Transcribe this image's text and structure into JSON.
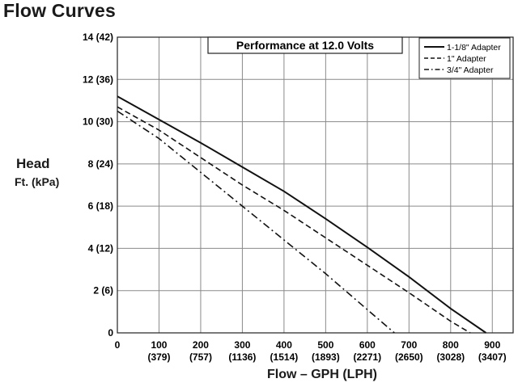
{
  "page_title": "Flow Curves",
  "chart_data": {
    "type": "line",
    "title": "Performance at 12.0 Volts",
    "ylabel_main": "Head",
    "ylabel_sub": "Ft. (kPa)",
    "xlabel": "Flow – GPH (LPH)",
    "xlim": [
      0,
      950
    ],
    "ylim": [
      0,
      14
    ],
    "grid": true,
    "legend_position": "top-right",
    "x_ticks": [
      {
        "value": 0,
        "label": "0",
        "sub": ""
      },
      {
        "value": 100,
        "label": "100",
        "sub": "(379)"
      },
      {
        "value": 200,
        "label": "200",
        "sub": "(757)"
      },
      {
        "value": 300,
        "label": "300",
        "sub": "(1136)"
      },
      {
        "value": 400,
        "label": "400",
        "sub": "(1514)"
      },
      {
        "value": 500,
        "label": "500",
        "sub": "(1893)"
      },
      {
        "value": 600,
        "label": "600",
        "sub": "(2271)"
      },
      {
        "value": 700,
        "label": "700",
        "sub": "(2650)"
      },
      {
        "value": 800,
        "label": "800",
        "sub": "(3028)"
      },
      {
        "value": 900,
        "label": "900",
        "sub": "(3407)"
      }
    ],
    "y_ticks": [
      {
        "value": 0,
        "label": "0"
      },
      {
        "value": 2,
        "label": "2 (6)"
      },
      {
        "value": 4,
        "label": "4 (12)"
      },
      {
        "value": 6,
        "label": "6 (18)"
      },
      {
        "value": 8,
        "label": "8 (24)"
      },
      {
        "value": 10,
        "label": "10 (30)"
      },
      {
        "value": 12,
        "label": "12 (36)"
      },
      {
        "value": 14,
        "label": "14 (42)"
      }
    ],
    "series": [
      {
        "name": "1-1/8\" Adapter",
        "dash": "solid",
        "x": [
          0,
          100,
          200,
          300,
          400,
          500,
          600,
          700,
          800,
          885
        ],
        "y": [
          11.2,
          10.1,
          9.0,
          7.85,
          6.7,
          5.4,
          4.05,
          2.65,
          1.15,
          0
        ]
      },
      {
        "name": "1\" Adapter",
        "dash": "dashed",
        "x": [
          0,
          100,
          200,
          300,
          400,
          500,
          600,
          700,
          800,
          847
        ],
        "y": [
          10.7,
          9.6,
          8.3,
          7.0,
          5.8,
          4.5,
          3.2,
          1.9,
          0.55,
          0
        ]
      },
      {
        "name": "3/4\" Adapter",
        "dash": "dashdot",
        "x": [
          0,
          100,
          200,
          300,
          400,
          500,
          600,
          665
        ],
        "y": [
          10.5,
          9.2,
          7.6,
          6.0,
          4.4,
          2.8,
          1.1,
          0
        ]
      }
    ],
    "colors": {
      "line": "#111111",
      "grid": "#8a8a8a",
      "frame": "#222222"
    }
  }
}
